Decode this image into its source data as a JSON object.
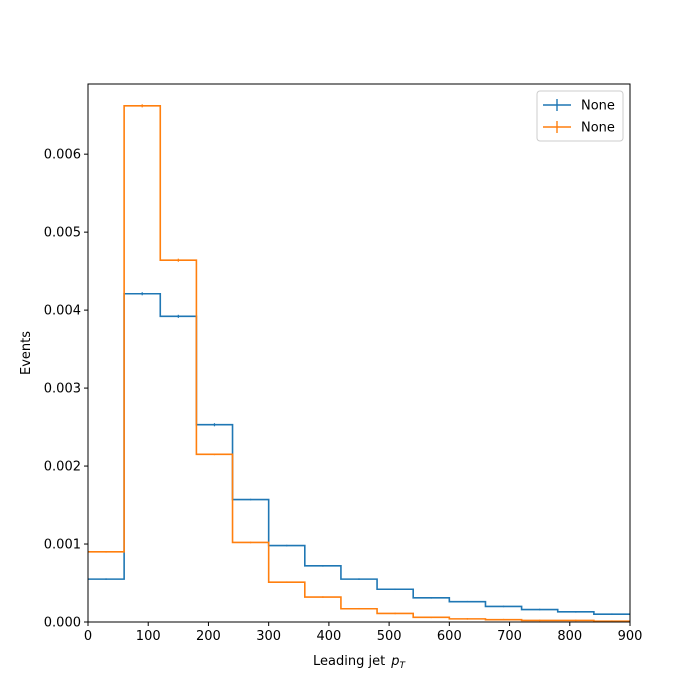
{
  "chart_data": {
    "type": "histogram-step",
    "xlabel": "Leading jet",
    "xlabel_math": "p",
    "xlabel_math_sub": "T",
    "ylabel": "Events",
    "xlim": [
      0,
      900
    ],
    "ylim": [
      0,
      0.0069
    ],
    "xticks": [
      0,
      100,
      200,
      300,
      400,
      500,
      600,
      700,
      800,
      900
    ],
    "yticks": [
      0.0,
      0.001,
      0.002,
      0.003,
      0.004,
      0.005,
      0.006
    ],
    "ytick_labels": [
      "0.000",
      "0.001",
      "0.002",
      "0.003",
      "0.004",
      "0.005",
      "0.006"
    ],
    "grid": false,
    "legend_position": "top-right",
    "bin_edges": [
      0,
      60,
      120,
      180,
      240,
      300,
      360,
      420,
      480,
      540,
      600,
      660,
      720,
      780,
      840,
      900
    ],
    "series": [
      {
        "name": "None",
        "color": "#1f77b4",
        "values": [
          0.00055,
          0.00421,
          0.00392,
          0.00253,
          0.00157,
          0.00098,
          0.00072,
          0.00055,
          0.00042,
          0.00031,
          0.00026,
          0.0002,
          0.00016,
          0.00013,
          0.0001
        ],
        "errors": [
          1e-05,
          2e-05,
          2e-05,
          2e-05,
          1e-05,
          1e-05,
          1e-05,
          1e-05,
          1e-05,
          1e-05,
          1e-05,
          1e-05,
          1e-05,
          1e-05,
          1e-05
        ]
      },
      {
        "name": "None",
        "color": "#ff7f0e",
        "values": [
          0.0009,
          0.00662,
          0.00464,
          0.00215,
          0.00102,
          0.00051,
          0.00032,
          0.00017,
          0.00011,
          6e-05,
          4e-05,
          3e-05,
          2e-05,
          2e-05,
          1e-05
        ],
        "errors": [
          1e-05,
          2e-05,
          2e-05,
          1e-05,
          1e-05,
          1e-05,
          1e-05,
          1e-05,
          1e-05,
          1e-05,
          1e-05,
          1e-05,
          1e-05,
          1e-05,
          1e-05
        ]
      }
    ]
  }
}
